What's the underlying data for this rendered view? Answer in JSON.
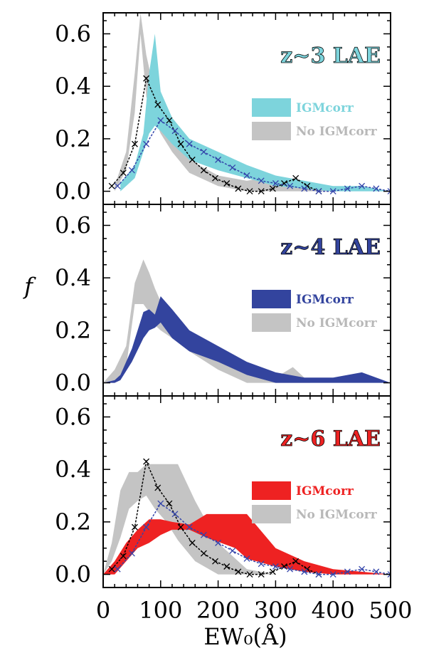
{
  "chart_data": {
    "type": "area",
    "xlabel": "EW₀(Å)",
    "ylabel": "f",
    "xlim": [
      0,
      500
    ],
    "ylim": [
      -0.05,
      0.68
    ],
    "xticks": [
      "0",
      "100",
      "200",
      "300",
      "400",
      "500"
    ],
    "yticks": [
      "0.0",
      "0.2",
      "0.4",
      "0.6"
    ],
    "colors": {
      "z3": "#7dd4dc",
      "z4": "#33449e",
      "z6": "#ee2222",
      "gray": "#c4c4c4",
      "black_hist": "#000000",
      "blue_hist": "#3344aa"
    },
    "panels": [
      {
        "label": "z~3 LAE",
        "color_key": "z3",
        "legend": [
          "IGMcorr",
          "No IGMcorr"
        ],
        "igm_band": {
          "x": [
            30,
            55,
            70,
            80,
            90,
            100,
            120,
            150,
            200,
            250,
            300,
            350,
            400,
            450,
            500
          ],
          "lower": [
            0.0,
            0.05,
            0.15,
            0.22,
            0.25,
            0.23,
            0.18,
            0.12,
            0.08,
            0.05,
            0.02,
            0.01,
            0.0,
            0.0,
            0.0
          ],
          "upper": [
            0.03,
            0.1,
            0.22,
            0.45,
            0.6,
            0.38,
            0.28,
            0.2,
            0.15,
            0.1,
            0.06,
            0.04,
            0.02,
            0.02,
            0.0
          ]
        },
        "noigm_band": {
          "x": [
            20,
            40,
            55,
            65,
            75,
            85,
            100,
            120,
            150,
            200,
            250,
            300,
            350,
            400
          ],
          "lower": [
            0.0,
            0.08,
            0.3,
            0.6,
            0.36,
            0.3,
            0.22,
            0.15,
            0.07,
            0.02,
            0.0,
            0.0,
            0.0,
            0.0
          ],
          "upper": [
            0.02,
            0.15,
            0.45,
            0.68,
            0.52,
            0.42,
            0.32,
            0.22,
            0.12,
            0.06,
            0.04,
            0.06,
            0.02,
            0.0
          ]
        },
        "hist_black": {
          "x": [
            15,
            35,
            55,
            75,
            95,
            115,
            135,
            155,
            175,
            195,
            215,
            235,
            255,
            275,
            295,
            315,
            335,
            355,
            375
          ],
          "y": [
            0.02,
            0.07,
            0.18,
            0.43,
            0.33,
            0.27,
            0.18,
            0.12,
            0.08,
            0.05,
            0.03,
            0.01,
            0.0,
            0.0,
            0.01,
            0.03,
            0.05,
            0.02,
            0.0
          ]
        },
        "hist_blue": {
          "x": [
            25,
            50,
            75,
            100,
            125,
            150,
            175,
            200,
            225,
            250,
            275,
            300,
            325,
            350,
            375,
            400,
            425,
            450,
            475,
            500
          ],
          "y": [
            0.02,
            0.08,
            0.18,
            0.27,
            0.23,
            0.18,
            0.15,
            0.12,
            0.09,
            0.06,
            0.04,
            0.03,
            0.02,
            0.01,
            0.0,
            0.0,
            0.01,
            0.02,
            0.01,
            0.0
          ]
        }
      },
      {
        "label": "z~4 LAE",
        "color_key": "z4",
        "legend": [
          "IGMcorr",
          "No IGMcorr"
        ],
        "igm_band": {
          "x": [
            0,
            20,
            30,
            50,
            70,
            80,
            90,
            100,
            120,
            150,
            200,
            250,
            300,
            350,
            400,
            450,
            500
          ],
          "lower": [
            0.0,
            0.0,
            0.01,
            0.08,
            0.17,
            0.2,
            0.21,
            0.23,
            0.17,
            0.12,
            0.08,
            0.03,
            0.0,
            0.0,
            0.0,
            0.0,
            0.0
          ],
          "upper": [
            0.0,
            0.01,
            0.03,
            0.13,
            0.27,
            0.28,
            0.26,
            0.33,
            0.28,
            0.2,
            0.14,
            0.08,
            0.04,
            0.02,
            0.02,
            0.04,
            0.0
          ]
        },
        "noigm_band": {
          "x": [
            0,
            20,
            40,
            55,
            70,
            80,
            90,
            100,
            120,
            150,
            200,
            250,
            300,
            330,
            360
          ],
          "lower": [
            0.0,
            0.0,
            0.06,
            0.3,
            0.3,
            0.27,
            0.22,
            0.2,
            0.17,
            0.12,
            0.05,
            0.0,
            0.0,
            0.0,
            0.0
          ],
          "upper": [
            0.0,
            0.05,
            0.14,
            0.38,
            0.47,
            0.42,
            0.36,
            0.31,
            0.24,
            0.17,
            0.1,
            0.03,
            0.02,
            0.06,
            0.0
          ]
        }
      },
      {
        "label": "z~6 LAE",
        "color_key": "z6",
        "legend": [
          "IGMcorr",
          "No IGMcorr"
        ],
        "igm_band": {
          "x": [
            0,
            20,
            40,
            60,
            80,
            100,
            120,
            150,
            180,
            230,
            250,
            300,
            350,
            400,
            450,
            500
          ],
          "lower": [
            0.0,
            0.0,
            0.05,
            0.1,
            0.12,
            0.15,
            0.17,
            0.17,
            0.14,
            0.1,
            0.06,
            0.03,
            0.01,
            0.0,
            0.0,
            0.0
          ],
          "upper": [
            0.0,
            0.05,
            0.12,
            0.17,
            0.21,
            0.21,
            0.2,
            0.19,
            0.23,
            0.23,
            0.23,
            0.1,
            0.05,
            0.02,
            0.01,
            0.0
          ]
        },
        "noigm_band": {
          "x": [
            0,
            15,
            30,
            45,
            60,
            75,
            90,
            110,
            130,
            160,
            200,
            250,
            300
          ],
          "lower": [
            0.0,
            0.05,
            0.14,
            0.25,
            0.28,
            0.3,
            0.25,
            0.2,
            0.13,
            0.05,
            0.0,
            0.0,
            0.0
          ],
          "upper": [
            0.0,
            0.12,
            0.32,
            0.39,
            0.39,
            0.42,
            0.42,
            0.42,
            0.42,
            0.28,
            0.12,
            0.02,
            0.0
          ]
        },
        "hist_black": {
          "x": [
            15,
            35,
            55,
            75,
            95,
            115,
            135,
            155,
            175,
            195,
            215,
            235,
            255,
            275,
            295,
            315,
            335,
            355,
            375
          ],
          "y": [
            0.02,
            0.07,
            0.18,
            0.43,
            0.33,
            0.27,
            0.18,
            0.12,
            0.08,
            0.05,
            0.03,
            0.01,
            0.0,
            0.0,
            0.01,
            0.03,
            0.05,
            0.02,
            0.0
          ]
        },
        "hist_blue": {
          "x": [
            25,
            50,
            75,
            100,
            125,
            150,
            175,
            200,
            225,
            250,
            275,
            300,
            325,
            350,
            375,
            400,
            425,
            450,
            475,
            500
          ],
          "y": [
            0.02,
            0.08,
            0.18,
            0.27,
            0.23,
            0.18,
            0.15,
            0.12,
            0.09,
            0.06,
            0.04,
            0.03,
            0.02,
            0.01,
            0.0,
            0.0,
            0.01,
            0.02,
            0.01,
            0.0
          ]
        }
      }
    ]
  }
}
